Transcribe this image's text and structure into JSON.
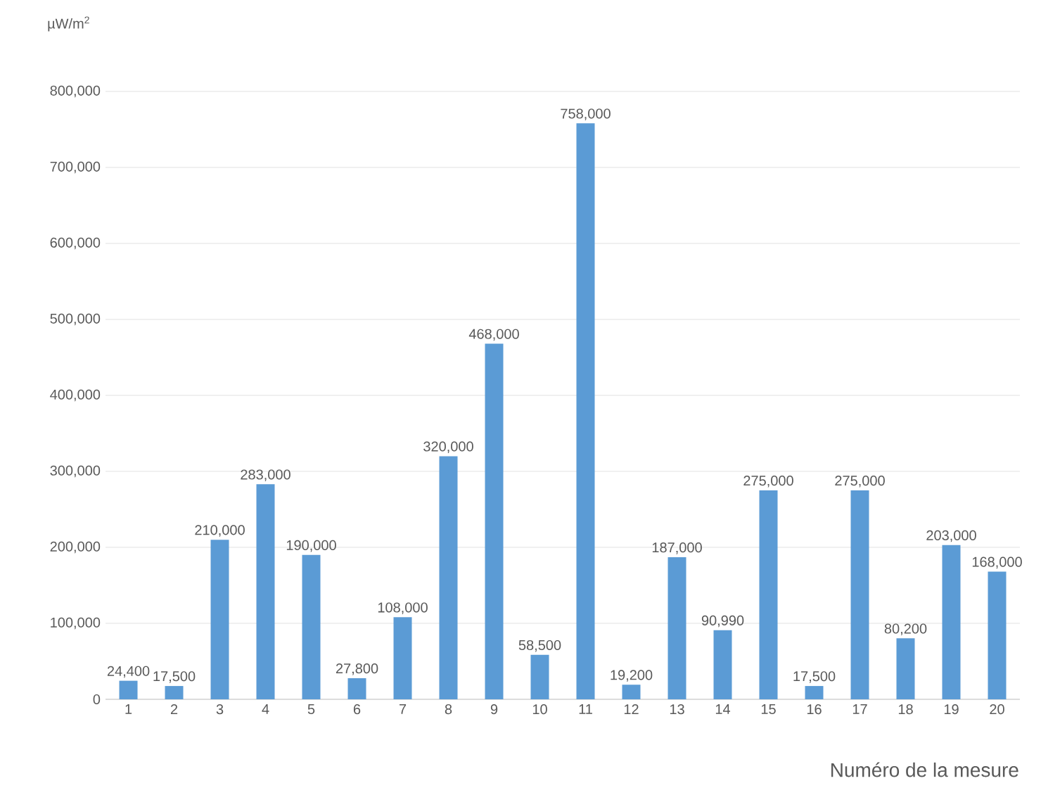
{
  "chart_data": {
    "type": "bar",
    "ylabel": "µW/m$^{2}$",
    "xlabel": "Numéro de la mesure",
    "categories": [
      "1",
      "2",
      "3",
      "4",
      "5",
      "6",
      "7",
      "8",
      "9",
      "10",
      "11",
      "12",
      "13",
      "14",
      "15",
      "16",
      "17",
      "18",
      "19",
      "20"
    ],
    "values": [
      24400,
      17500,
      210000,
      283000,
      190000,
      27800,
      108000,
      320000,
      468000,
      58500,
      758000,
      19200,
      187000,
      90990,
      275000,
      17500,
      275000,
      80200,
      203000,
      168000
    ],
    "value_labels": [
      "24,400",
      "17,500",
      "210,000",
      "283,000",
      "190,000",
      "27,800",
      "108,000",
      "320,000",
      "468,000",
      "58,500",
      "758,000",
      "19,200",
      "187,000",
      "90,990",
      "275,000",
      "17,500",
      "275,000",
      "80,200",
      "203,000",
      "168,000"
    ],
    "color": "#5b9bd5",
    "ylim": [
      0,
      800000
    ],
    "yticks": [
      0,
      {
        "value": 100000,
        "label": "100,000"
      },
      {
        "value": 200000,
        "label": "200,000"
      },
      {
        "value": 300000,
        "label": "300,000"
      },
      {
        "value": 400000,
        "label": "400,000"
      },
      {
        "value": 500000,
        "label": "500,000"
      },
      {
        "value": 600000,
        "label": "600,000"
      },
      {
        "value": 700000,
        "label": "700,000"
      },
      {
        "value": 800000,
        "label": "800,000"
      }
    ],
    "grid": "y"
  }
}
